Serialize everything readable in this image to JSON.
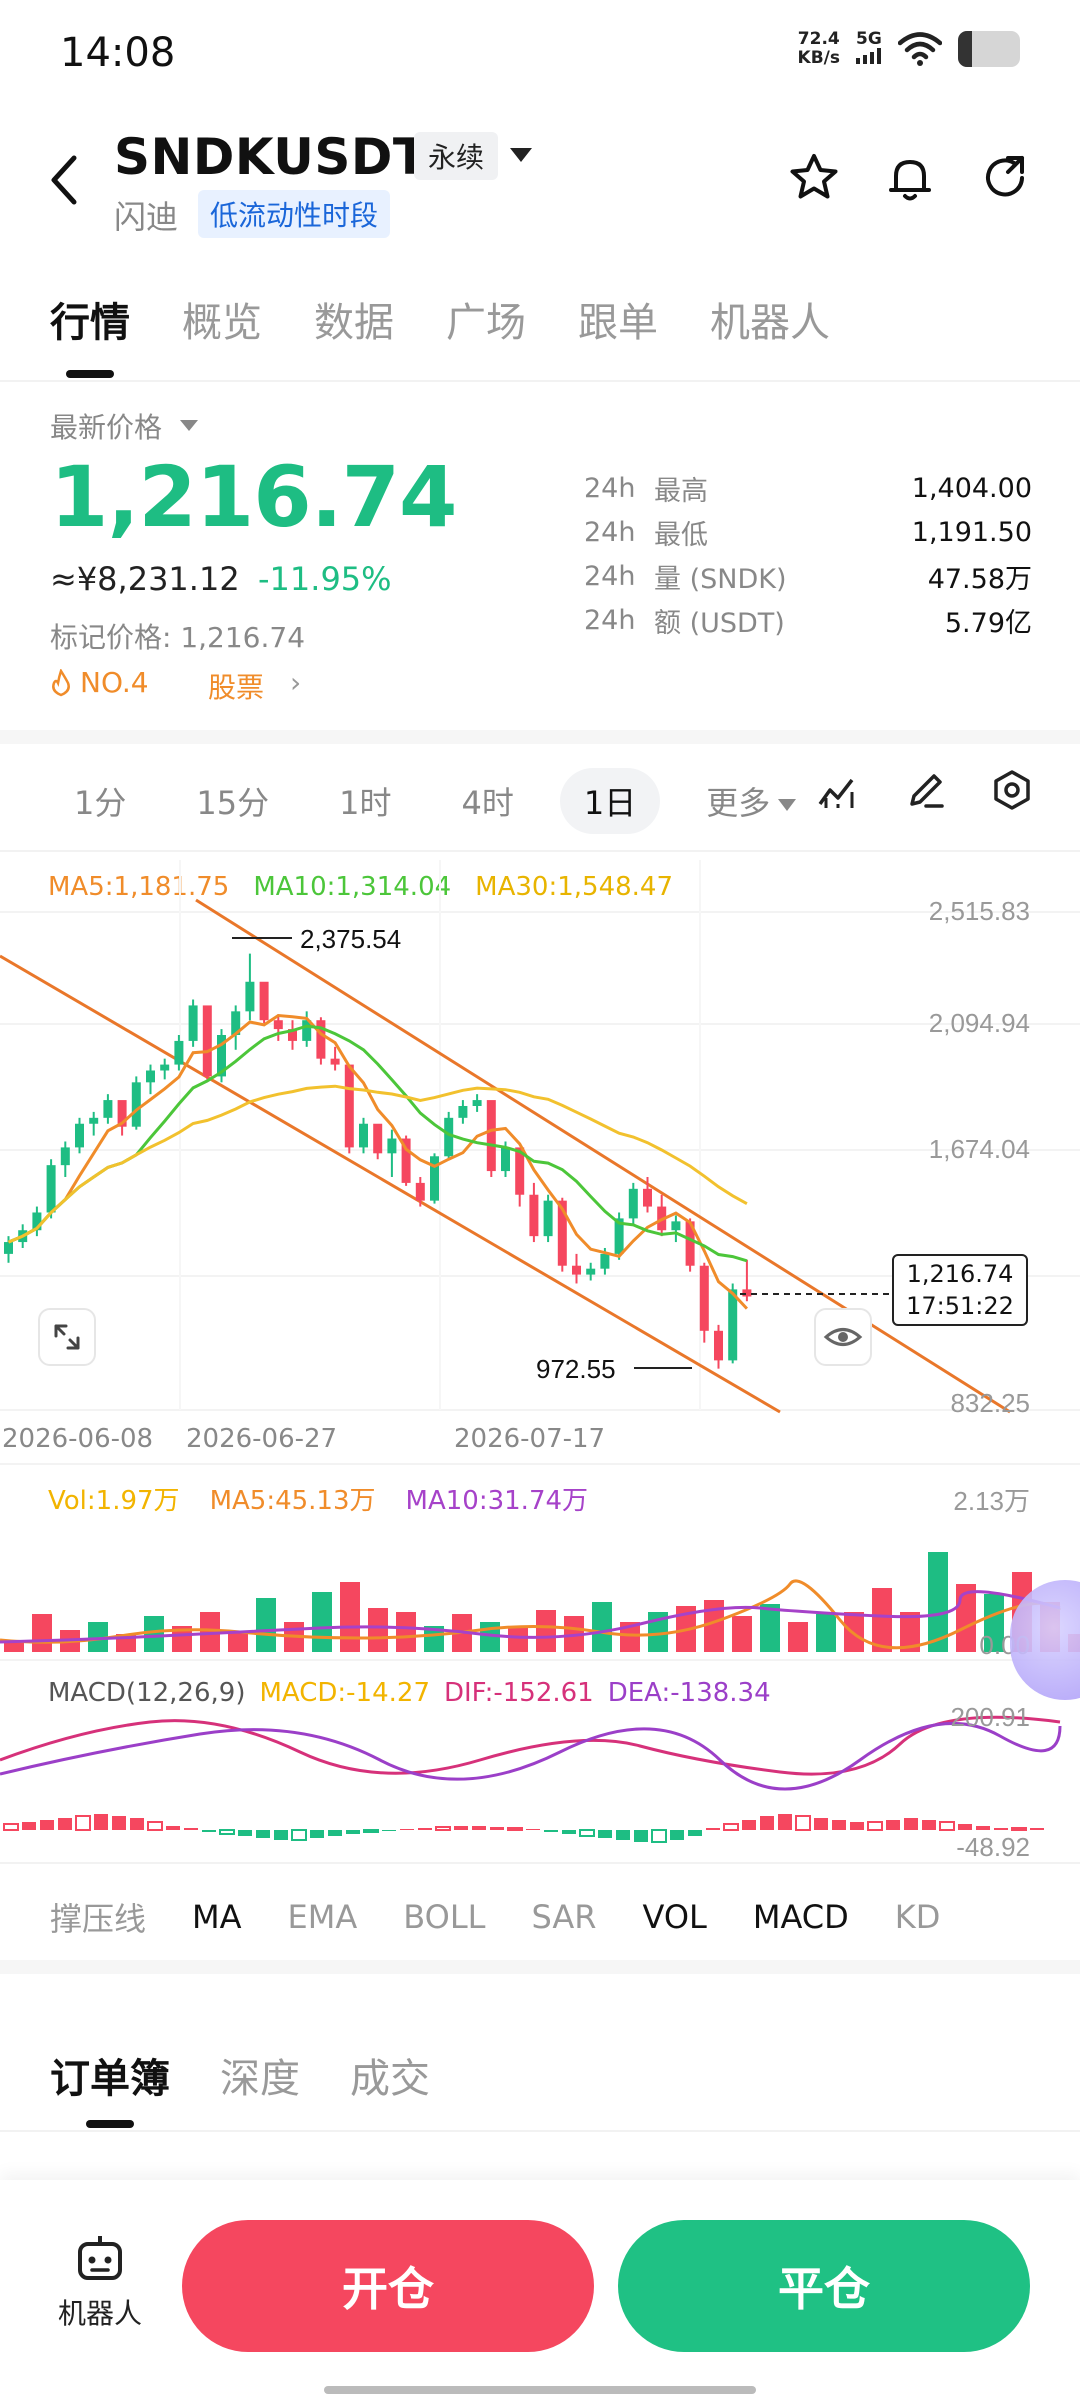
{
  "status_bar": {
    "time": "14:08",
    "net_speed_value": "72.4",
    "net_speed_unit": "KB/s",
    "network": "5G"
  },
  "header": {
    "symbol": "SNDKUSDT",
    "contract_type": "永续",
    "company_name": "闪迪",
    "liquidity_tag": "低流动性时段"
  },
  "tabs": [
    "行情",
    "概览",
    "数据",
    "广场",
    "跟单",
    "机器人"
  ],
  "price": {
    "label": "最新价格",
    "last": "1,216.74",
    "cny": "≈¥8,231.12",
    "change": "-11.95%",
    "mark": "标记价格: 1,216.74",
    "rank": "NO.4",
    "category": "股票"
  },
  "stats": [
    {
      "period": "24h",
      "label": "最高",
      "value": "1,404.00"
    },
    {
      "period": "24h",
      "label": "最低",
      "value": "1,191.50"
    },
    {
      "period": "24h",
      "label": "量 (SNDK)",
      "value": "47.58万"
    },
    {
      "period": "24h",
      "label": "额 (USDT)",
      "value": "5.79亿"
    }
  ],
  "timeframes": [
    "1分",
    "15分",
    "1时",
    "4时",
    "1日"
  ],
  "timeframe_more": "更多",
  "selected_timeframe": "1日",
  "ma_legend": {
    "ma5": "MA5:1,181.75",
    "ma10": "MA10:1,314.04",
    "ma30": "MA30:1,548.47"
  },
  "price_axis": [
    "2,515.83",
    "2,094.94",
    "1,674.04",
    "832.25"
  ],
  "annotations": {
    "high": "2,375.54",
    "low": "972.55"
  },
  "current_price_box": {
    "price": "1,216.74",
    "countdown": "17:51:22"
  },
  "dates": [
    "2026-06-08",
    "2026-06-27",
    "2026-07-17"
  ],
  "volume": {
    "vol": "Vol:1.97万",
    "ma5": "MA5:45.13万",
    "ma10": "MA10:31.74万",
    "axis_top": "2.13万",
    "axis_bottom": "0.00"
  },
  "macd": {
    "label": "MACD(12,26,9)",
    "macd": "MACD:-14.27",
    "dif": "DIF:-152.61",
    "dea": "DEA:-138.34",
    "axis_top": "200.91",
    "axis_bottom": "-48.92"
  },
  "indicators": {
    "drawing": "撑压线",
    "main": [
      "MA",
      "EMA",
      "BOLL",
      "SAR"
    ],
    "sub": [
      "VOL",
      "MACD",
      "KD"
    ]
  },
  "orderbook_tabs": [
    "订单簿",
    "深度",
    "成交"
  ],
  "bottom": {
    "robot": "机器人",
    "open": "开仓",
    "close": "平仓"
  },
  "colors": {
    "up": "#1ebd83",
    "down": "#f5475f",
    "ma5": "#f08c2a",
    "ma10": "#4cc63a",
    "ma30": "#f2c12e",
    "channel": "#e9772a"
  },
  "chart_data": {
    "type": "candlestick",
    "ohlc_approx": [
      [
        1360,
        1420,
        1330,
        1400
      ],
      [
        1400,
        1460,
        1380,
        1440
      ],
      [
        1440,
        1520,
        1420,
        1500
      ],
      [
        1500,
        1680,
        1480,
        1660
      ],
      [
        1660,
        1740,
        1620,
        1720
      ],
      [
        1720,
        1820,
        1700,
        1800
      ],
      [
        1800,
        1840,
        1760,
        1820
      ],
      [
        1820,
        1900,
        1800,
        1880
      ],
      [
        1880,
        1860,
        1760,
        1790
      ],
      [
        1790,
        1960,
        1780,
        1940
      ],
      [
        1940,
        2000,
        1900,
        1980
      ],
      [
        1980,
        2020,
        1950,
        2000
      ],
      [
        2000,
        2100,
        1980,
        2080
      ],
      [
        2080,
        2220,
        2060,
        2200
      ],
      [
        2200,
        2180,
        1950,
        1960
      ],
      [
        1960,
        2120,
        1940,
        2100
      ],
      [
        2100,
        2200,
        2050,
        2180
      ],
      [
        2180,
        2375,
        2150,
        2280
      ],
      [
        2280,
        2260,
        2140,
        2150
      ],
      [
        2150,
        2170,
        2080,
        2120
      ],
      [
        2120,
        2150,
        2050,
        2080
      ],
      [
        2080,
        2180,
        2060,
        2150
      ],
      [
        2150,
        2160,
        2000,
        2020
      ],
      [
        2020,
        2060,
        1980,
        2000
      ],
      [
        2000,
        1990,
        1700,
        1720
      ],
      [
        1720,
        1820,
        1700,
        1800
      ],
      [
        1800,
        1790,
        1680,
        1700
      ],
      [
        1700,
        1780,
        1620,
        1750
      ],
      [
        1750,
        1760,
        1590,
        1600
      ],
      [
        1600,
        1620,
        1520,
        1540
      ],
      [
        1540,
        1700,
        1530,
        1690
      ],
      [
        1690,
        1840,
        1680,
        1820
      ],
      [
        1820,
        1880,
        1800,
        1860
      ],
      [
        1860,
        1900,
        1840,
        1880
      ],
      [
        1880,
        1870,
        1620,
        1640
      ],
      [
        1640,
        1740,
        1620,
        1720
      ],
      [
        1720,
        1710,
        1520,
        1560
      ],
      [
        1560,
        1600,
        1400,
        1420
      ],
      [
        1420,
        1560,
        1400,
        1540
      ],
      [
        1540,
        1550,
        1300,
        1320
      ],
      [
        1320,
        1360,
        1260,
        1290
      ],
      [
        1290,
        1330,
        1270,
        1310
      ],
      [
        1310,
        1380,
        1290,
        1360
      ],
      [
        1360,
        1500,
        1340,
        1480
      ],
      [
        1480,
        1600,
        1460,
        1580
      ],
      [
        1580,
        1620,
        1500,
        1520
      ],
      [
        1520,
        1560,
        1420,
        1440
      ],
      [
        1440,
        1490,
        1400,
        1470
      ],
      [
        1470,
        1480,
        1300,
        1320
      ],
      [
        1320,
        1330,
        1060,
        1100
      ],
      [
        1100,
        1120,
        972,
        1000
      ],
      [
        1000,
        1260,
        990,
        1240
      ],
      [
        1240,
        1340,
        1200,
        1216
      ]
    ]
  }
}
